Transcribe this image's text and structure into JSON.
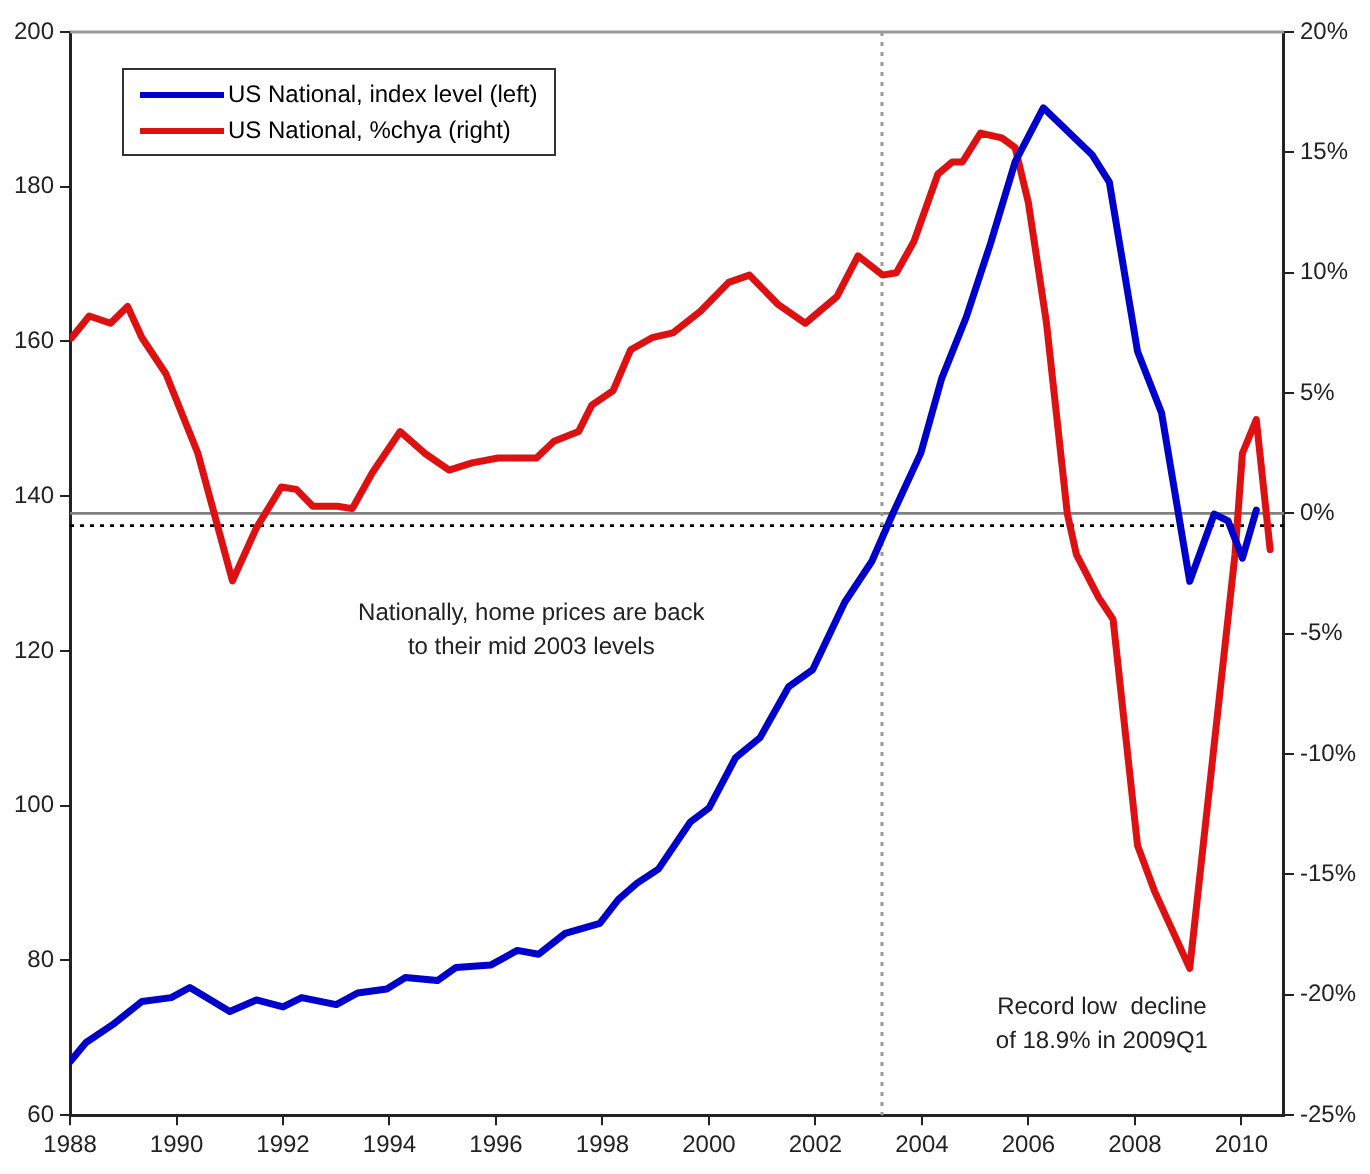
{
  "chart_data": {
    "type": "line",
    "xlim": [
      1988,
      2010.8
    ],
    "xticks": [
      1988,
      1990,
      1992,
      1994,
      1996,
      1998,
      2000,
      2002,
      2004,
      2006,
      2008,
      2010
    ],
    "ylim": [
      60,
      200
    ],
    "yticks": [
      60,
      80,
      100,
      120,
      140,
      160,
      180,
      200
    ],
    "y2lim": [
      -25,
      20
    ],
    "y2ticks": [
      {
        "value": -25,
        "label": "-25%"
      },
      {
        "value": -20,
        "label": "-20%"
      },
      {
        "value": -15,
        "label": "-15%"
      },
      {
        "value": -10,
        "label": "-10%"
      },
      {
        "value": -5,
        "label": "-5%"
      },
      {
        "value": 0,
        "label": "0%"
      },
      {
        "value": 5,
        "label": "5%"
      },
      {
        "value": 10,
        "label": "10%"
      },
      {
        "value": 15,
        "label": "15%"
      },
      {
        "value": 20,
        "label": "20%"
      }
    ],
    "series": [
      {
        "name": "US National, index level (left)",
        "color": "#0000cc",
        "axis": "y",
        "x": [
          1988.0,
          1988.3,
          1988.8,
          1989.35,
          1989.9,
          1990.25,
          1991.0,
          1991.5,
          1992.0,
          1992.35,
          1993.0,
          1993.4,
          1993.95,
          1994.3,
          1994.9,
          1995.25,
          1995.9,
          1996.4,
          1996.8,
          1997.3,
          1997.95,
          1998.3,
          1998.65,
          1999.05,
          1999.65,
          2000.0,
          2000.5,
          2000.96,
          2001.5,
          2001.95,
          2002.55,
          2003.06,
          2003.45,
          2003.98,
          2004.37,
          2004.83,
          2005.29,
          2005.75,
          2006.28,
          2007.2,
          2007.52,
          2008.05,
          2008.5,
          2009.03,
          2009.49,
          2009.75,
          2010.02,
          2010.28
        ],
        "values": [
          66.9,
          69.4,
          71.7,
          74.7,
          75.2,
          76.5,
          73.4,
          74.9,
          74.0,
          75.2,
          74.3,
          75.8,
          76.3,
          77.8,
          77.4,
          79.1,
          79.4,
          81.3,
          80.8,
          83.5,
          84.8,
          87.9,
          90.0,
          91.8,
          97.9,
          99.7,
          106.2,
          108.8,
          115.4,
          117.6,
          126.3,
          131.6,
          137.7,
          145.6,
          155.2,
          163.1,
          172.7,
          183.2,
          190.2,
          184.1,
          180.6,
          158.7,
          150.8,
          129.0,
          137.7,
          136.8,
          132.0,
          138.2
        ]
      },
      {
        "name": "US National, %chya (right)",
        "color": "#dd1111",
        "axis": "y2",
        "x": [
          1988.03,
          1988.36,
          1988.76,
          1989.08,
          1989.35,
          1989.8,
          1990.4,
          1991.05,
          1991.5,
          1991.97,
          1992.25,
          1992.56,
          1993.02,
          1993.3,
          1993.68,
          1994.2,
          1994.66,
          1995.12,
          1995.55,
          1996.04,
          1996.76,
          1997.09,
          1997.55,
          1997.8,
          1998.2,
          1998.53,
          1998.93,
          1999.32,
          1999.84,
          2000.37,
          2000.76,
          2001.29,
          2001.81,
          2002.4,
          2002.8,
          2003.26,
          2003.52,
          2003.85,
          2004.3,
          2004.57,
          2004.76,
          2005.1,
          2005.5,
          2005.75,
          2006.0,
          2006.34,
          2006.73,
          2006.9,
          2007.32,
          2007.59,
          2008.05,
          2008.37,
          2009.03,
          2009.88,
          2010.02,
          2010.28,
          2010.54
        ],
        "values": [
          7.3,
          8.2,
          7.9,
          8.6,
          7.3,
          5.8,
          2.5,
          -2.8,
          -0.6,
          1.1,
          1.0,
          0.3,
          0.3,
          0.2,
          1.7,
          3.4,
          2.5,
          1.8,
          2.1,
          2.3,
          2.3,
          3.0,
          3.4,
          4.5,
          5.1,
          6.8,
          7.3,
          7.5,
          8.4,
          9.6,
          9.9,
          8.7,
          7.9,
          9.0,
          10.7,
          9.9,
          10.0,
          11.3,
          14.1,
          14.6,
          14.6,
          15.8,
          15.6,
          15.2,
          12.9,
          7.9,
          0.0,
          -1.7,
          -3.5,
          -4.4,
          -13.8,
          -15.7,
          -18.9,
          -1.7,
          2.5,
          3.9,
          -1.5
        ]
      }
    ],
    "ref_lines": [
      {
        "axis": "y2",
        "value": 0,
        "color": "#808080",
        "line_style": "solid"
      },
      {
        "axis": "y",
        "value": 136.2,
        "color": "#000000",
        "line_style": "dotted"
      },
      {
        "axis": "x",
        "value": 2003.25,
        "color": "#999999",
        "line_style": "dotted"
      }
    ],
    "annotations": [
      "Nationally, home prices are back to their mid 2003 levels",
      "Record low  decline of 18.9% in 2009Q1"
    ],
    "legend": "top left",
    "marker": "none",
    "line_style": "solid",
    "grid": false
  }
}
